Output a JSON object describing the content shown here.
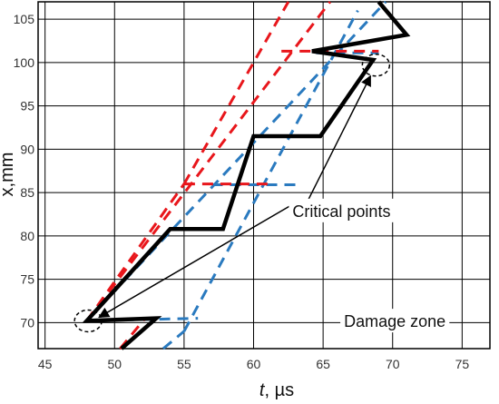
{
  "chart_data": {
    "type": "line",
    "title": "",
    "xlabel_italic": "t",
    "xlabel_rest": ", µs",
    "ylabel": "x,mm",
    "xlim": [
      44.5,
      77
    ],
    "ylim": [
      67,
      107
    ],
    "x_ticks": [
      45,
      50,
      55,
      60,
      65,
      70,
      75
    ],
    "y_ticks": [
      70,
      75,
      80,
      85,
      90,
      95,
      100,
      105
    ],
    "grid": true,
    "colors": {
      "black": "#000000",
      "red": "#e8161b",
      "blue": "#2a7abf",
      "grid": "#000000"
    },
    "series": [
      {
        "style": "solid-black-thick",
        "points": [
          [
            50.5,
            67
          ],
          [
            53,
            70.5
          ],
          [
            48,
            70.2
          ],
          [
            54,
            80.8
          ],
          [
            57.8,
            80.8
          ],
          [
            60,
            91.5
          ],
          [
            64.8,
            91.5
          ],
          [
            68.6,
            100.3
          ],
          [
            64.2,
            101.3
          ],
          [
            71,
            103.2
          ],
          [
            69,
            107
          ]
        ]
      },
      {
        "style": "dashed-red",
        "points": [
          [
            50.4,
            67
          ],
          [
            52.2,
            70.5
          ]
        ]
      },
      {
        "style": "dashed-red",
        "points": [
          [
            48,
            70.2
          ],
          [
            55,
            86
          ]
        ]
      },
      {
        "style": "dashed-red",
        "points": [
          [
            48,
            70.2
          ],
          [
            65.5,
            107
          ]
        ]
      },
      {
        "style": "dashed-red",
        "points": [
          [
            55,
            86
          ],
          [
            62.5,
            107
          ]
        ]
      },
      {
        "style": "dashed-red",
        "points": [
          [
            55,
            86
          ],
          [
            61.5,
            86
          ]
        ]
      },
      {
        "style": "dashed-red",
        "points": [
          [
            62,
            101.3
          ],
          [
            69,
            101.3
          ]
        ]
      },
      {
        "style": "dashed-blue",
        "points": [
          [
            53.5,
            67
          ],
          [
            55,
            69
          ]
        ]
      },
      {
        "style": "dashed-blue",
        "points": [
          [
            48,
            70.2
          ],
          [
            56,
            70.5
          ]
        ]
      },
      {
        "style": "dashed-blue",
        "points": [
          [
            48,
            70.2
          ],
          [
            69.5,
            107
          ]
        ]
      },
      {
        "style": "dashed-blue",
        "points": [
          [
            55,
            69
          ],
          [
            67.5,
            106
          ]
        ]
      },
      {
        "style": "dashed-blue",
        "points": [
          [
            57,
            85.9
          ],
          [
            63,
            85.9
          ]
        ]
      },
      {
        "style": "dashed-blue",
        "points": [
          [
            64.5,
            101.1
          ],
          [
            69,
            101.1
          ]
        ]
      }
    ],
    "critical_points": [
      [
        48.1,
        70.2
      ],
      [
        68.8,
        99.7
      ]
    ],
    "annotations": [
      {
        "text": "Critical points",
        "x": 62.8,
        "y": 82.2
      },
      {
        "text": "Damage zone",
        "x": 66.5,
        "y": 69.5
      }
    ]
  }
}
